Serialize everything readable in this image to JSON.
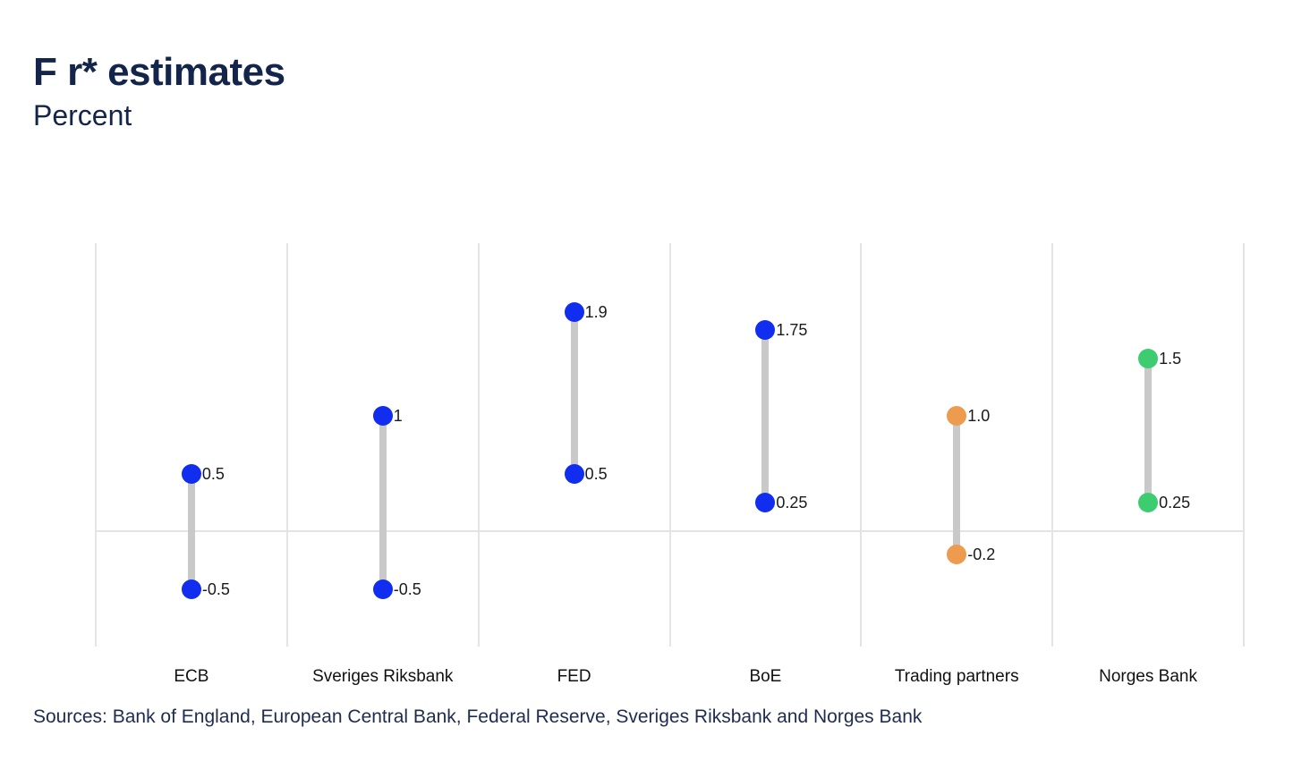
{
  "header": {
    "title": "F r* estimates",
    "subtitle": "Percent"
  },
  "footer": {
    "sources": "Sources: Bank of England, European Central Bank, Federal Reserve, Sveriges Riksbank and Norges Bank"
  },
  "colors": {
    "background": "#FFFFFF",
    "title_text": "#14254B",
    "sources_text": "#1F2C50",
    "value_label_text": "#1A1A1A",
    "category_label_text": "#111111",
    "gridline": "#E4E4E4",
    "stem": "#C9C9C9",
    "blue": "#112DF0",
    "orange": "#ED9B4E",
    "green": "#3ECC70"
  },
  "chart_data": {
    "type": "dumbbell",
    "title": "F r* estimates",
    "ylabel": "Percent",
    "legend": "none",
    "grid": "vertical category separators plus horizontal zero line",
    "categories": [
      "ECB",
      "Sveriges Riksbank",
      "FED",
      "BoE",
      "Trading partners",
      "Norges Bank"
    ],
    "series": [
      {
        "category": "ECB",
        "high": 0.5,
        "low": -0.5,
        "high_label": "0.5",
        "low_label": "-0.5",
        "color_key": "blue"
      },
      {
        "category": "Sveriges Riksbank",
        "high": 1,
        "low": -0.5,
        "high_label": "1",
        "low_label": "-0.5",
        "color_key": "blue"
      },
      {
        "category": "FED",
        "high": 1.9,
        "low": 0.5,
        "high_label": "1.9",
        "low_label": "0.5",
        "color_key": "blue"
      },
      {
        "category": "BoE",
        "high": 1.75,
        "low": 0.25,
        "high_label": "1.75",
        "low_label": "0.25",
        "color_key": "blue"
      },
      {
        "category": "Trading partners",
        "high": 1.0,
        "low": -0.2,
        "high_label": "1.0",
        "low_label": "-0.2",
        "color_key": "orange"
      },
      {
        "category": "Norges Bank",
        "high": 1.5,
        "low": 0.25,
        "high_label": "1.5",
        "low_label": "0.25",
        "color_key": "green"
      }
    ],
    "ylim": [
      -1.0,
      2.5
    ],
    "zero_line": 0
  }
}
